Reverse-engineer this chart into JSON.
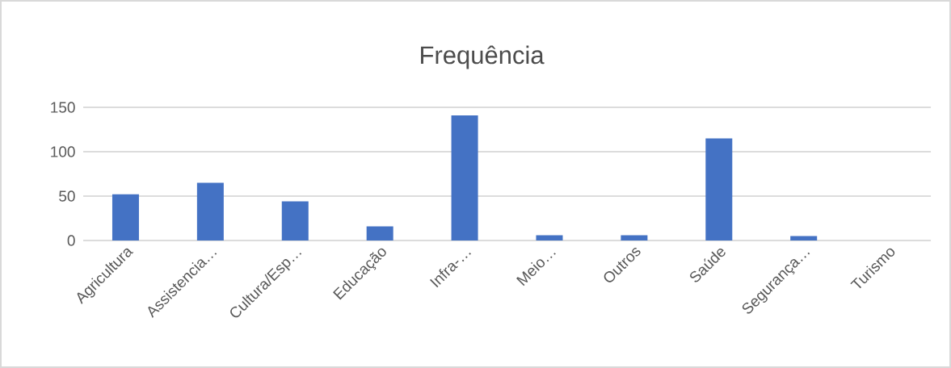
{
  "chart_data": {
    "type": "bar",
    "title": "Frequência",
    "categories": [
      "Agricultura",
      "Assistencia…",
      "Cultura/Esp…",
      "Educação",
      "Infra-…",
      "Meio…",
      "Outros",
      "Saúde",
      "Segurança…",
      "Turismo"
    ],
    "values": [
      52,
      65,
      44,
      16,
      141,
      6,
      6,
      115,
      5,
      0
    ],
    "color": "#4472c4",
    "ylim": [
      0,
      150
    ],
    "yticks": [
      0,
      50,
      100,
      150
    ],
    "grid": "y"
  }
}
